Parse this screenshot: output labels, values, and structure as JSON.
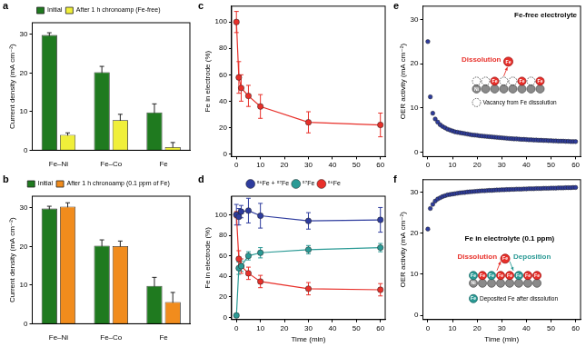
{
  "chart_data": [
    {
      "panel_label": "a",
      "type": "bar",
      "categories": [
        "Fe–Ni",
        "Fe–Co",
        "Fe"
      ],
      "series": [
        {
          "name": "Initial",
          "color": "#1f7a1f",
          "values": [
            29.8,
            20.2,
            9.8
          ],
          "errors": [
            0.6,
            1.5,
            2.2
          ]
        },
        {
          "name": "After 1 h chronoamp (Fe-free)",
          "color": "#f0ef3a",
          "values": [
            4.0,
            7.8,
            0.8
          ],
          "errors": [
            0.5,
            1.5,
            1.2
          ]
        }
      ],
      "ylabel": "Current density (mA cm⁻²)",
      "ylim": [
        0,
        33
      ],
      "yticks": [
        0,
        10,
        20,
        30
      ],
      "legend": "top",
      "grid": false
    },
    {
      "panel_label": "b",
      "type": "bar",
      "categories": [
        "Fe–Ni",
        "Fe–Co",
        "Fe"
      ],
      "series": [
        {
          "name": "Initial",
          "color": "#1f7a1f",
          "values": [
            29.8,
            20.2,
            9.8
          ],
          "errors": [
            0.6,
            1.5,
            2.2
          ]
        },
        {
          "name": "After 1 h chronoamp (0.1 ppm of Fe)",
          "color": "#f18c1d",
          "values": [
            30.3,
            20.1,
            5.6
          ],
          "errors": [
            1.0,
            1.3,
            2.5
          ]
        }
      ],
      "ylabel": "Current density (mA cm⁻²)",
      "ylim": [
        0,
        33
      ],
      "yticks": [
        0,
        10,
        20,
        30
      ],
      "legend": "top",
      "grid": false
    },
    {
      "panel_label": "c",
      "type": "line",
      "marker": "circle",
      "line_style": "solid",
      "x": [
        0,
        1,
        2,
        5,
        10,
        30,
        60
      ],
      "series": [
        {
          "color": "#e8302a",
          "values": [
            100,
            58,
            50,
            44,
            36,
            24,
            22
          ],
          "errors": [
            8,
            12,
            10,
            8,
            9,
            8,
            9
          ]
        }
      ],
      "ylabel": "Fe in electrode (%)",
      "xlim": [
        -2,
        62
      ],
      "xticks": [
        0,
        10,
        20,
        30,
        40,
        50,
        60
      ],
      "ylim": [
        -2,
        112
      ],
      "yticks": [
        0,
        20,
        40,
        60,
        80,
        100
      ],
      "grid": false
    },
    {
      "panel_label": "d",
      "type": "line",
      "marker": "circle",
      "line_style": "solid",
      "x": [
        0,
        1,
        2,
        5,
        10,
        30,
        60
      ],
      "series": [
        {
          "name": "⁵⁶Fe + ⁵⁷Fe",
          "color": "#2e3c9e",
          "values": [
            100,
            98,
            103,
            104,
            99,
            94,
            95
          ],
          "errors": [
            10,
            8,
            6,
            12,
            12,
            8,
            12
          ]
        },
        {
          "name": "⁵⁷Fe",
          "color": "#2a9a95",
          "values": [
            2,
            48,
            50,
            60,
            63,
            66,
            68
          ],
          "errors": [
            1,
            6,
            5,
            4,
            5,
            4,
            4
          ]
        },
        {
          "name": "⁵⁶Fe",
          "color": "#e8302a",
          "values": [
            100,
            57,
            50,
            43,
            35,
            28,
            27
          ],
          "errors": [
            3,
            8,
            7,
            6,
            6,
            6,
            6
          ]
        }
      ],
      "xlabel": "Time (min)",
      "ylabel": "Fe in electrode (%)",
      "xlim": [
        -2,
        62
      ],
      "xticks": [
        0,
        10,
        20,
        30,
        40,
        50,
        60
      ],
      "ylim": [
        -2,
        118
      ],
      "yticks": [
        0,
        20,
        40,
        60,
        80,
        100
      ],
      "legend": "top",
      "grid": false
    },
    {
      "panel_label": "e",
      "type": "scatter",
      "marker": "circle",
      "x": [
        0,
        1,
        2,
        3,
        4,
        5,
        6,
        7,
        8,
        9,
        10,
        11,
        12,
        13,
        14,
        15,
        16,
        17,
        18,
        19,
        20,
        21,
        22,
        23,
        24,
        25,
        26,
        27,
        28,
        29,
        30,
        31,
        32,
        33,
        34,
        35,
        36,
        37,
        38,
        39,
        40,
        41,
        42,
        43,
        44,
        45,
        46,
        47,
        48,
        49,
        50,
        51,
        52,
        53,
        54,
        55,
        56,
        57,
        58,
        59,
        60
      ],
      "series": [
        {
          "color": "#2e3c9e",
          "values": [
            25,
            12.5,
            8.8,
            7.5,
            6.8,
            6.2,
            5.8,
            5.5,
            5.2,
            5.0,
            4.8,
            4.6,
            4.5,
            4.4,
            4.3,
            4.2,
            4.1,
            4.0,
            3.9,
            3.85,
            3.8,
            3.7,
            3.65,
            3.6,
            3.55,
            3.5,
            3.45,
            3.4,
            3.35,
            3.3,
            3.25,
            3.2,
            3.15,
            3.1,
            3.05,
            3.0,
            3.0,
            2.95,
            2.9,
            2.9,
            2.85,
            2.8,
            2.8,
            2.75,
            2.75,
            2.7,
            2.7,
            2.65,
            2.65,
            2.6,
            2.6,
            2.55,
            2.55,
            2.5,
            2.5,
            2.5,
            2.45,
            2.45,
            2.4,
            2.4,
            2.4
          ]
        }
      ],
      "ylabel": "OER activity (mA cm⁻²)",
      "xlim": [
        -2,
        62
      ],
      "xticks": [
        0,
        10,
        20,
        30,
        40,
        50,
        60
      ],
      "ylim": [
        -1,
        33
      ],
      "yticks": [
        0,
        10,
        20,
        30
      ],
      "grid": false,
      "annotations": {
        "condition": "Fe-free electrolyte",
        "process": "Dissolution",
        "element": "Fe",
        "substrate": "Ni",
        "note": "Vacancy from Fe dissolution"
      }
    },
    {
      "panel_label": "f",
      "type": "scatter",
      "marker": "circle",
      "x": [
        0,
        1,
        2,
        3,
        4,
        5,
        6,
        7,
        8,
        9,
        10,
        11,
        12,
        13,
        14,
        15,
        16,
        17,
        18,
        19,
        20,
        21,
        22,
        23,
        24,
        25,
        26,
        27,
        28,
        29,
        30,
        31,
        32,
        33,
        34,
        35,
        36,
        37,
        38,
        39,
        40,
        41,
        42,
        43,
        44,
        45,
        46,
        47,
        48,
        49,
        50,
        51,
        52,
        53,
        54,
        55,
        56,
        57,
        58,
        59,
        60
      ],
      "series": [
        {
          "color": "#2e3c9e",
          "values": [
            21,
            26,
            27,
            27.8,
            28.3,
            28.6,
            28.9,
            29.1,
            29.3,
            29.4,
            29.5,
            29.6,
            29.7,
            29.8,
            29.85,
            29.9,
            30.0,
            30.05,
            30.1,
            30.15,
            30.2,
            30.25,
            30.3,
            30.3,
            30.35,
            30.4,
            30.4,
            30.45,
            30.5,
            30.5,
            30.55,
            30.55,
            30.6,
            30.6,
            30.65,
            30.65,
            30.7,
            30.7,
            30.7,
            30.75,
            30.75,
            30.8,
            30.8,
            30.8,
            30.85,
            30.85,
            30.85,
            30.9,
            30.9,
            30.9,
            30.95,
            30.95,
            30.95,
            31.0,
            31.0,
            31.0,
            31.05,
            31.05,
            31.05,
            31.1,
            31.1
          ]
        }
      ],
      "xlabel": "Time (min)",
      "ylabel": "OER activity (mA cm⁻²)",
      "xlim": [
        -2,
        62
      ],
      "xticks": [
        0,
        10,
        20,
        30,
        40,
        50,
        60
      ],
      "ylim": [
        -1,
        33
      ],
      "yticks": [
        0,
        10,
        20,
        30
      ],
      "grid": false,
      "annotations": {
        "condition": "Fe in electrolyte (0.1 ppm)",
        "process": "Dissolution",
        "process2": "Deposition",
        "element": "Fe",
        "substrate": "Ni",
        "note": "Deposited Fe after dissolution"
      }
    }
  ]
}
